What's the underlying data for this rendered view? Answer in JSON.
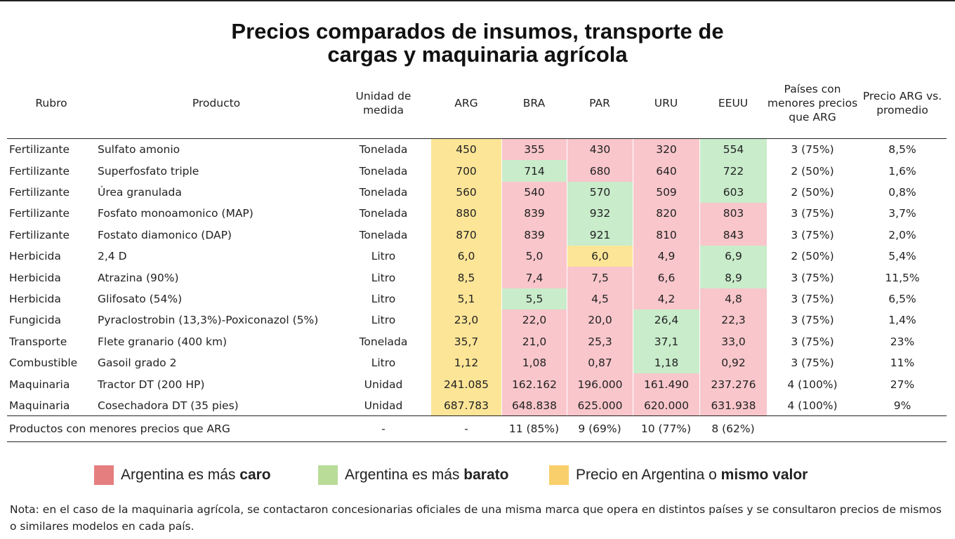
{
  "title": {
    "line1": "Precios comparados de insumos, transporte de",
    "line2": "cargas y maquinaria agrícola"
  },
  "colors": {
    "expensive": "#f8c6cb",
    "cheaper": "#c9eccb",
    "argentina": "#fde597",
    "swatch_expensive": "#e57f7f",
    "swatch_cheaper": "#b9dc99",
    "swatch_argentina": "#f8cf6a"
  },
  "headers": {
    "rubro": "Rubro",
    "producto": "Producto",
    "unidad": "Unidad de medida",
    "arg": "ARG",
    "bra": "BRA",
    "par": "PAR",
    "uru": "URU",
    "eeuu": "EEUU",
    "paises": "Países con menores precios que ARG",
    "precio": "Precio ARG vs. promedio"
  },
  "rows": [
    {
      "rubro": "Fertilizante",
      "producto": "Sulfato amonio",
      "unidad": "Tonelada",
      "arg": "450",
      "bra": "355",
      "par": "430",
      "uru": "320",
      "eeuu": "554",
      "paises": "3 (75%)",
      "precio": "8,5%",
      "c": [
        "r",
        "r",
        "r",
        "g"
      ]
    },
    {
      "rubro": "Fertilizante",
      "producto": "Superfosfato triple",
      "unidad": "Tonelada",
      "arg": "700",
      "bra": "714",
      "par": "680",
      "uru": "640",
      "eeuu": "722",
      "paises": "2 (50%)",
      "precio": "1,6%",
      "c": [
        "g",
        "r",
        "r",
        "g"
      ]
    },
    {
      "rubro": "Fertilizante",
      "producto": "Úrea granulada",
      "unidad": "Tonelada",
      "arg": "560",
      "bra": "540",
      "par": "570",
      "uru": "509",
      "eeuu": "603",
      "paises": "2 (50%)",
      "precio": "0,8%",
      "c": [
        "r",
        "g",
        "r",
        "g"
      ]
    },
    {
      "rubro": "Fertilizante",
      "producto": "Fosfato monoamonico (MAP)",
      "unidad": "Tonelada",
      "arg": "880",
      "bra": "839",
      "par": "932",
      "uru": "820",
      "eeuu": "803",
      "paises": "3 (75%)",
      "precio": "3,7%",
      "c": [
        "r",
        "g",
        "r",
        "r"
      ]
    },
    {
      "rubro": "Fertilizante",
      "producto": "Fostato diamonico (DAP)",
      "unidad": "Tonelada",
      "arg": "870",
      "bra": "839",
      "par": "921",
      "uru": "810",
      "eeuu": "843",
      "paises": "3 (75%)",
      "precio": "2,0%",
      "c": [
        "r",
        "g",
        "r",
        "r"
      ]
    },
    {
      "rubro": "Herbicida",
      "producto": "2,4 D",
      "unidad": "Litro",
      "arg": "6,0",
      "bra": "5,0",
      "par": "6,0",
      "uru": "4,9",
      "eeuu": "6,9",
      "paises": "2 (50%)",
      "precio": "5,4%",
      "c": [
        "r",
        "y",
        "r",
        "g"
      ]
    },
    {
      "rubro": "Herbicida",
      "producto": "Atrazina (90%)",
      "unidad": "Litro",
      "arg": "8,5",
      "bra": "7,4",
      "par": "7,5",
      "uru": "6,6",
      "eeuu": "8,9",
      "paises": "3 (75%)",
      "precio": "11,5%",
      "c": [
        "r",
        "r",
        "r",
        "g"
      ]
    },
    {
      "rubro": "Herbicida",
      "producto": "Glifosato (54%)",
      "unidad": "Litro",
      "arg": "5,1",
      "bra": "5,5",
      "par": "4,5",
      "uru": "4,2",
      "eeuu": "4,8",
      "paises": "3 (75%)",
      "precio": "6,5%",
      "c": [
        "g",
        "r",
        "r",
        "r"
      ]
    },
    {
      "rubro": "Fungicida",
      "producto": "Pyraclostrobin (13,3%)-Poxiconazol (5%)",
      "unidad": "Litro",
      "arg": "23,0",
      "bra": "22,0",
      "par": "20,0",
      "uru": "26,4",
      "eeuu": "22,3",
      "paises": "3 (75%)",
      "precio": "1,4%",
      "c": [
        "r",
        "r",
        "g",
        "r"
      ]
    },
    {
      "rubro": "Transporte",
      "producto": "Flete granario (400 km)",
      "unidad": "Tonelada",
      "arg": "35,7",
      "bra": "21,0",
      "par": "25,3",
      "uru": "37,1",
      "eeuu": "33,0",
      "paises": "3 (75%)",
      "precio": "23%",
      "c": [
        "r",
        "r",
        "g",
        "r"
      ]
    },
    {
      "rubro": "Combustible",
      "producto": "Gasoil grado 2",
      "unidad": "Litro",
      "arg": "1,12",
      "bra": "1,08",
      "par": "0,87",
      "uru": "1,18",
      "eeuu": "0,92",
      "paises": "3 (75%)",
      "precio": "11%",
      "c": [
        "r",
        "r",
        "g",
        "r"
      ]
    },
    {
      "rubro": "Maquinaria",
      "producto": "Tractor DT (200 HP)",
      "unidad": "Unidad",
      "arg": "241.085",
      "bra": "162.162",
      "par": "196.000",
      "uru": "161.490",
      "eeuu": "237.276",
      "paises": "4 (100%)",
      "precio": "27%",
      "c": [
        "r",
        "r",
        "r",
        "r"
      ]
    },
    {
      "rubro": "Maquinaria",
      "producto": "Cosechadora DT (35 pies)",
      "unidad": "Unidad",
      "arg": "687.783",
      "bra": "648.838",
      "par": "625.000",
      "uru": "620.000",
      "eeuu": "631.938",
      "paises": "4 (100%)",
      "precio": "9%",
      "c": [
        "r",
        "r",
        "r",
        "r"
      ]
    }
  ],
  "footer": {
    "label": "Productos con menores precios que ARG",
    "unidad": "-",
    "arg": "-",
    "bra": "11 (85%)",
    "par": "9 (69%)",
    "uru": "10 (77%)",
    "eeuu": "8 (62%)"
  },
  "legend": {
    "expensive_prefix": "Argentina es más ",
    "expensive_bold": "caro",
    "cheaper_prefix": "Argentina es más ",
    "cheaper_bold": "barato",
    "arg_prefix": "Precio en Argentina o ",
    "arg_bold": "mismo valor"
  },
  "note": "Nota: en el caso de la maquinaria agrícola, se contactaron concesionarias oficiales de una misma marca que opera en distintos países y se consultaron precios de mismos o similares modelos en cada país."
}
